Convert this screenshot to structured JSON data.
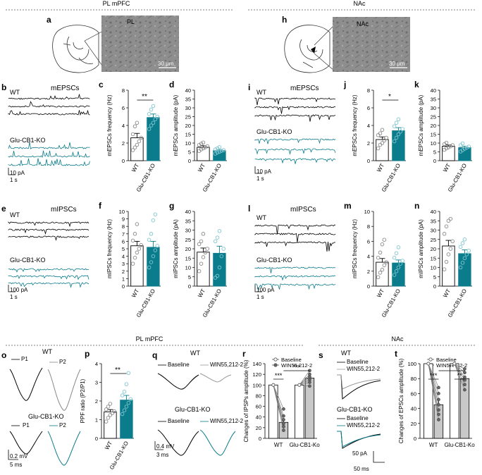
{
  "colors": {
    "wt": "#000000",
    "ko": "#0b7c8c",
    "ko_light": "#7fc6d0",
    "gray": "#8a8a8a"
  },
  "sections": {
    "top_left": "PL mPFC",
    "top_right": "NAc",
    "bottom_left": "PL mPFC",
    "bottom_right": "NAc"
  },
  "labels": {
    "wt": "WT",
    "ko": "Glu-CB1-KO",
    "mepscs": "mEPSCs",
    "mipscs": "mIPSCs",
    "ko_short": "Glu-CB1-Ko"
  },
  "panels": {
    "a": {
      "letter": "a",
      "region": "PL",
      "scale": "30 μm"
    },
    "h": {
      "letter": "h",
      "region": "NAc",
      "scale": "30 μm"
    },
    "b": {
      "letter": "b",
      "scale_pa": "10 pA",
      "scale_t": "1 s"
    },
    "e": {
      "letter": "e",
      "scale_pa": "100 pA",
      "scale_t": "1 s"
    },
    "i": {
      "letter": "i",
      "scale_pa": "10 pA",
      "scale_t": "1 s"
    },
    "l": {
      "letter": "l",
      "scale_pa": "100 pA",
      "scale_t": "1 s"
    },
    "o": {
      "letter": "o",
      "p1": "P1",
      "p2": "P2",
      "scale_v": "0.2 mV",
      "scale_t": "5 ms"
    },
    "q": {
      "letter": "q",
      "baseline": "Baseline",
      "win": "WIN55,212-2",
      "scale_v": "0.4 mV",
      "scale_t": "3 ms"
    },
    "s": {
      "letter": "s",
      "baseline": "Baseline",
      "win": "WIN55,212-2",
      "scale_i": "50 pA",
      "scale_t": "50 ms"
    }
  },
  "chart_data": [
    {
      "id": "c",
      "type": "bar",
      "letter": "c",
      "ylabel": "mEPSCs frequency (Hz)",
      "ylim": [
        0,
        8
      ],
      "yticks": [
        0,
        2,
        4,
        6,
        8
      ],
      "categories": [
        "WT",
        "Glu-CB1-KO"
      ],
      "values": [
        2.6,
        4.9
      ],
      "errors": [
        0.5,
        0.4
      ],
      "sig": "**",
      "points": [
        [
          1.2,
          1.5,
          1.8,
          2.2,
          2.6,
          3.0,
          3.9,
          4.3
        ],
        [
          3.6,
          4.0,
          4.3,
          4.7,
          5.0,
          5.3,
          5.8,
          6.2
        ]
      ]
    },
    {
      "id": "d",
      "type": "bar",
      "letter": "d",
      "ylabel": "mEPSCs amplitude (pA)",
      "ylim": [
        0,
        40
      ],
      "yticks": [
        0,
        5,
        10,
        15,
        20,
        25,
        30,
        35,
        40
      ],
      "categories": [
        "WT",
        "Glu-CB1-KO"
      ],
      "values": [
        7.6,
        5.7
      ],
      "errors": [
        0.9,
        0.6
      ],
      "sig": "",
      "points": [
        [
          5.5,
          6.4,
          7.0,
          7.6,
          8.2,
          8.9,
          9.6,
          10.3
        ],
        [
          4.0,
          4.6,
          5.1,
          5.6,
          6.0,
          6.4,
          7.0,
          7.7
        ]
      ]
    },
    {
      "id": "f",
      "type": "bar",
      "letter": "f",
      "ylabel": "mIPSCs frequency (Hz)",
      "ylim": [
        0,
        10
      ],
      "yticks": [
        0,
        1,
        2,
        3,
        4,
        5,
        6,
        7,
        8,
        9,
        10
      ],
      "categories": [
        "WT",
        "Glu-CB1-KO"
      ],
      "values": [
        5.4,
        5.2
      ],
      "errors": [
        0.6,
        0.8
      ],
      "sig": "",
      "points": [
        [
          3.0,
          3.8,
          4.5,
          5.0,
          5.5,
          6.1,
          7.0,
          8.3
        ],
        [
          2.5,
          3.2,
          4.0,
          4.8,
          5.4,
          6.2,
          7.0,
          8.8,
          9.6
        ]
      ]
    },
    {
      "id": "g",
      "type": "bar",
      "letter": "g",
      "ylabel": "mIPSCs amplitude (pA)",
      "ylim": [
        0,
        40
      ],
      "yticks": [
        0,
        5,
        10,
        15,
        20,
        25,
        30,
        35,
        40
      ],
      "categories": [
        "WT",
        "Glu-CB1-KO"
      ],
      "values": [
        18.2,
        17.6
      ],
      "errors": [
        2.2,
        3.8
      ],
      "sig": "",
      "points": [
        [
          8.0,
          12.0,
          15.5,
          18.0,
          20.0,
          22.5,
          24.0,
          28.0
        ],
        [
          4.5,
          5.5,
          10.0,
          16.0,
          20.0,
          24.0,
          26.0,
          29.5
        ]
      ]
    },
    {
      "id": "j",
      "type": "bar",
      "letter": "j",
      "ylabel": "mEPSCs frequency (Hz)",
      "ylim": [
        0,
        8
      ],
      "yticks": [
        0,
        2,
        4,
        6,
        8
      ],
      "categories": [
        "WT",
        "Glu-CB1-KO"
      ],
      "values": [
        2.4,
        3.4
      ],
      "errors": [
        0.3,
        0.35
      ],
      "sig": "*",
      "points": [
        [
          1.4,
          1.8,
          2.0,
          2.3,
          2.6,
          2.9,
          3.1,
          3.5
        ],
        [
          2.2,
          2.6,
          3.0,
          3.3,
          3.6,
          3.9,
          4.3,
          4.7
        ]
      ]
    },
    {
      "id": "k",
      "type": "bar",
      "letter": "k",
      "ylabel": "mEPSCs amplitude (pA)",
      "ylim": [
        0,
        40
      ],
      "yticks": [
        0,
        5,
        10,
        15,
        20,
        25,
        30,
        35,
        40
      ],
      "categories": [
        "WT",
        "Glu-CB1-KO"
      ],
      "values": [
        8.2,
        7.4
      ],
      "errors": [
        0.7,
        0.8
      ],
      "sig": "",
      "points": [
        [
          6.2,
          7.0,
          7.6,
          8.2,
          8.8,
          9.4,
          10.2
        ],
        [
          5.2,
          6.0,
          6.8,
          7.4,
          8.0,
          8.8,
          9.8
        ]
      ]
    },
    {
      "id": "m",
      "type": "bar",
      "letter": "m",
      "ylabel": "mIPSCs frequency (Hz)",
      "ylim": [
        0,
        10
      ],
      "yticks": [
        0,
        2,
        4,
        6,
        8,
        10
      ],
      "categories": [
        "WT",
        "Glu-CB1-KO"
      ],
      "values": [
        3.2,
        3.1
      ],
      "errors": [
        0.5,
        0.4
      ],
      "sig": "",
      "points": [
        [
          1.2,
          1.8,
          2.2,
          2.8,
          3.2,
          3.8,
          4.5,
          5.6,
          6.2
        ],
        [
          1.5,
          2.0,
          2.5,
          3.0,
          3.4,
          3.8,
          4.4,
          5.2
        ]
      ]
    },
    {
      "id": "n",
      "type": "bar",
      "letter": "n",
      "ylabel": "mIPSCs amplitude (pA)",
      "ylim": [
        0,
        40
      ],
      "yticks": [
        0,
        5,
        10,
        15,
        20,
        25,
        30,
        35,
        40
      ],
      "categories": [
        "WT",
        "Glu-CB1-KO"
      ],
      "values": [
        21.5,
        17.4
      ],
      "errors": [
        3.0,
        2.0
      ],
      "sig": "",
      "points": [
        [
          9.0,
          13.0,
          17.0,
          20.0,
          24.0,
          28.0,
          32.0,
          35.0,
          36.0
        ],
        [
          10.0,
          12.5,
          15.0,
          17.0,
          19.0,
          21.0,
          23.0,
          25.0
        ]
      ]
    },
    {
      "id": "p",
      "type": "bar",
      "letter": "p",
      "ylabel": "PPF ratio (P2/P1)",
      "ylim": [
        0,
        4
      ],
      "yticks": [
        0,
        1,
        2,
        3,
        4
      ],
      "categories": [
        "WT",
        "Glu-CB1-KO"
      ],
      "values": [
        1.42,
        2.05
      ],
      "errors": [
        0.12,
        0.25
      ],
      "sig": "**",
      "points": [
        [
          0.9,
          1.1,
          1.25,
          1.35,
          1.45,
          1.55,
          1.7,
          1.85
        ],
        [
          1.3,
          1.5,
          1.7,
          1.9,
          2.1,
          2.3,
          2.5,
          2.9,
          3.5
        ]
      ]
    },
    {
      "id": "r",
      "type": "paired_bar",
      "letter": "r",
      "ylabel": "Changes of IPSPs amplitude (%)",
      "ylim": [
        0,
        140
      ],
      "yticks": [
        0,
        20,
        40,
        60,
        80,
        100,
        120,
        140
      ],
      "groups": [
        "WT",
        "Glu-CB1-Ko"
      ],
      "legend": [
        "Baseline",
        "WIN55,212-2"
      ],
      "values": [
        [
          100,
          30
        ],
        [
          100,
          113
        ]
      ],
      "errors": [
        [
          0,
          7
        ],
        [
          0,
          6
        ]
      ],
      "pairs": [
        [
          [
            100,
            15
          ],
          [
            100,
            22
          ],
          [
            100,
            28
          ],
          [
            100,
            35
          ],
          [
            100,
            42
          ],
          [
            100,
            55
          ]
        ],
        [
          [
            100,
            98
          ],
          [
            100,
            105
          ],
          [
            100,
            110
          ],
          [
            100,
            115
          ],
          [
            100,
            120
          ],
          [
            100,
            127
          ]
        ]
      ],
      "sig_within": [
        "***",
        ""
      ],
      "sig_between": "***"
    },
    {
      "id": "t",
      "type": "paired_bar",
      "letter": "t",
      "ylabel": "Changes of EPSCs amplitude (%)",
      "ylim": [
        0,
        100
      ],
      "yticks": [
        0,
        20,
        40,
        60,
        80,
        100
      ],
      "groups": [
        "WT",
        "Glu-CB1-Ko"
      ],
      "legend": [
        "Baseline",
        "WIN55,212-2"
      ],
      "values": [
        [
          100,
          45
        ],
        [
          100,
          80
        ]
      ],
      "errors": [
        [
          0,
          5
        ],
        [
          0,
          4
        ]
      ],
      "pairs": [
        [
          [
            100,
            25
          ],
          [
            100,
            32
          ],
          [
            100,
            38
          ],
          [
            100,
            45
          ],
          [
            100,
            52
          ],
          [
            100,
            60
          ],
          [
            100,
            68
          ]
        ],
        [
          [
            100,
            65
          ],
          [
            100,
            72
          ],
          [
            100,
            78
          ],
          [
            100,
            82
          ],
          [
            100,
            88
          ],
          [
            100,
            93
          ]
        ]
      ],
      "sig_within": [
        "***",
        "**"
      ],
      "sig_between": "**"
    }
  ]
}
